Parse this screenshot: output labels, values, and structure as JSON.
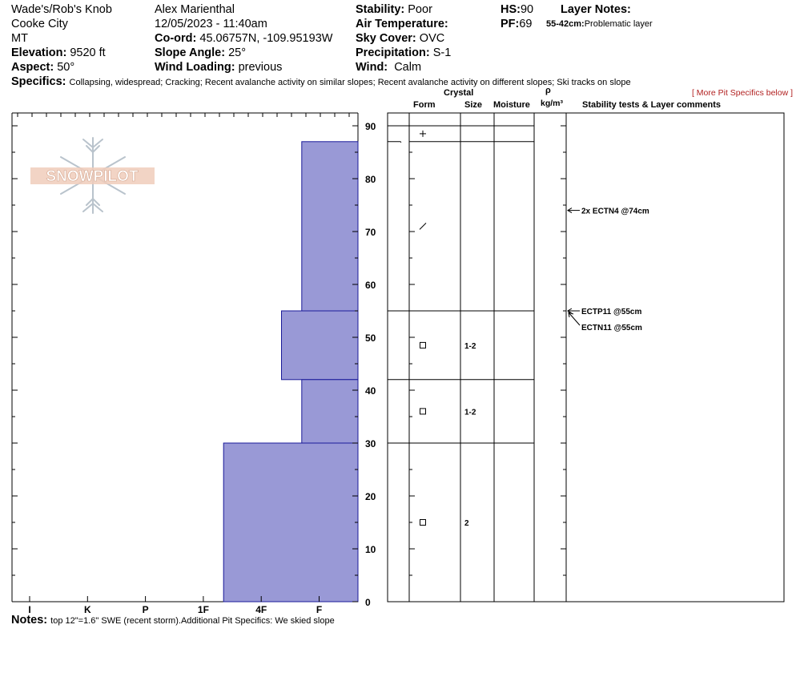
{
  "header": {
    "location": "Wade's/Rob's Knob",
    "town": "Cooke City",
    "state": "MT",
    "elevation_label": "Elevation:",
    "elevation_value": "9520 ft",
    "aspect_label": "Aspect:",
    "aspect_value": "50°",
    "observer": "Alex Marienthal",
    "datetime": "12/05/2023 - 11:40am",
    "coord_label": "Co-ord:",
    "coord_value": "45.06757N, -109.95193W",
    "slope_label": "Slope Angle:",
    "slope_value": "25°",
    "wind_loading_label": "Wind Loading:",
    "wind_loading_value": "previous",
    "stability_label": "Stability:",
    "stability_value": "Poor",
    "air_temp_label": "Air Temperature:",
    "sky_label": "Sky Cover:",
    "sky_value": "OVC",
    "precip_label": "Precipitation:",
    "precip_value": "S-1",
    "wind_label": "Wind:",
    "wind_value": "Calm",
    "hs_label": "HS:",
    "hs_value": "90",
    "pf_label": "PF:",
    "pf_value": "69",
    "layer_notes_label": "Layer Notes:",
    "layer_note_range": "55-42cm:",
    "layer_note_text": "Problematic layer",
    "specifics_label": "Specifics:",
    "specifics_text": "Collapsing, widespread; Cracking; Recent avalanche activity on similar slopes; Recent avalanche activity on different slopes; Ski tracks on slope",
    "more_specifics": "[ More Pit Specifics below ]",
    "notes_label": "Notes:",
    "notes_text": "top 12\"=1.6\" SWE (recent storm).Additional Pit Specifics: We skied slope"
  },
  "logo": {
    "text": "SNOWPILOT"
  },
  "columns": {
    "crystal": "Crystal",
    "form": "Form",
    "size": "Size",
    "moisture": "Moisture",
    "rho": "ρ",
    "density_unit": "kg/m³",
    "comments": "Stability tests & Layer comments"
  },
  "chart_data": {
    "type": "bar",
    "title": "",
    "ylabel": "",
    "ylim": [
      0,
      90
    ],
    "y_ticks": [
      "0",
      "10",
      "20",
      "30",
      "40",
      "50",
      "60",
      "70",
      "80",
      "90"
    ],
    "hardness_scale": [
      "I",
      "K",
      "P",
      "1F",
      "4F",
      "F"
    ],
    "hardness_index": {
      "F": 5.7,
      "4F": 4.7,
      "4F+": 4.35,
      "1F+": 3.35
    },
    "layers": [
      {
        "bottom": 87,
        "top": 90,
        "hardness": "F"
      },
      {
        "bottom": 55,
        "top": 87,
        "hardness": "4F"
      },
      {
        "bottom": 42,
        "top": 55,
        "hardness": "4F+"
      },
      {
        "bottom": 30,
        "top": 42,
        "hardness": "4F"
      },
      {
        "bottom": 0,
        "top": 30,
        "hardness": "1F+"
      }
    ],
    "layer_boundaries": [
      90,
      87,
      55,
      42,
      30
    ],
    "crystals": [
      {
        "depth": 88.5,
        "form": "+",
        "size": ""
      },
      {
        "depth": 71,
        "form": "/",
        "size": ""
      },
      {
        "depth": 48.5,
        "form": "□",
        "size": "1-2"
      },
      {
        "depth": 36,
        "form": "□",
        "size": "1-2"
      },
      {
        "depth": 15,
        "form": "□",
        "size": "2"
      }
    ],
    "stability_tests": [
      {
        "depth": 74,
        "label": "2x ECTN4 @74cm"
      },
      {
        "depth": 55,
        "label": "ECTP11 @55cm"
      },
      {
        "depth": 55,
        "label": "ECTN11 @55cm"
      }
    ]
  }
}
